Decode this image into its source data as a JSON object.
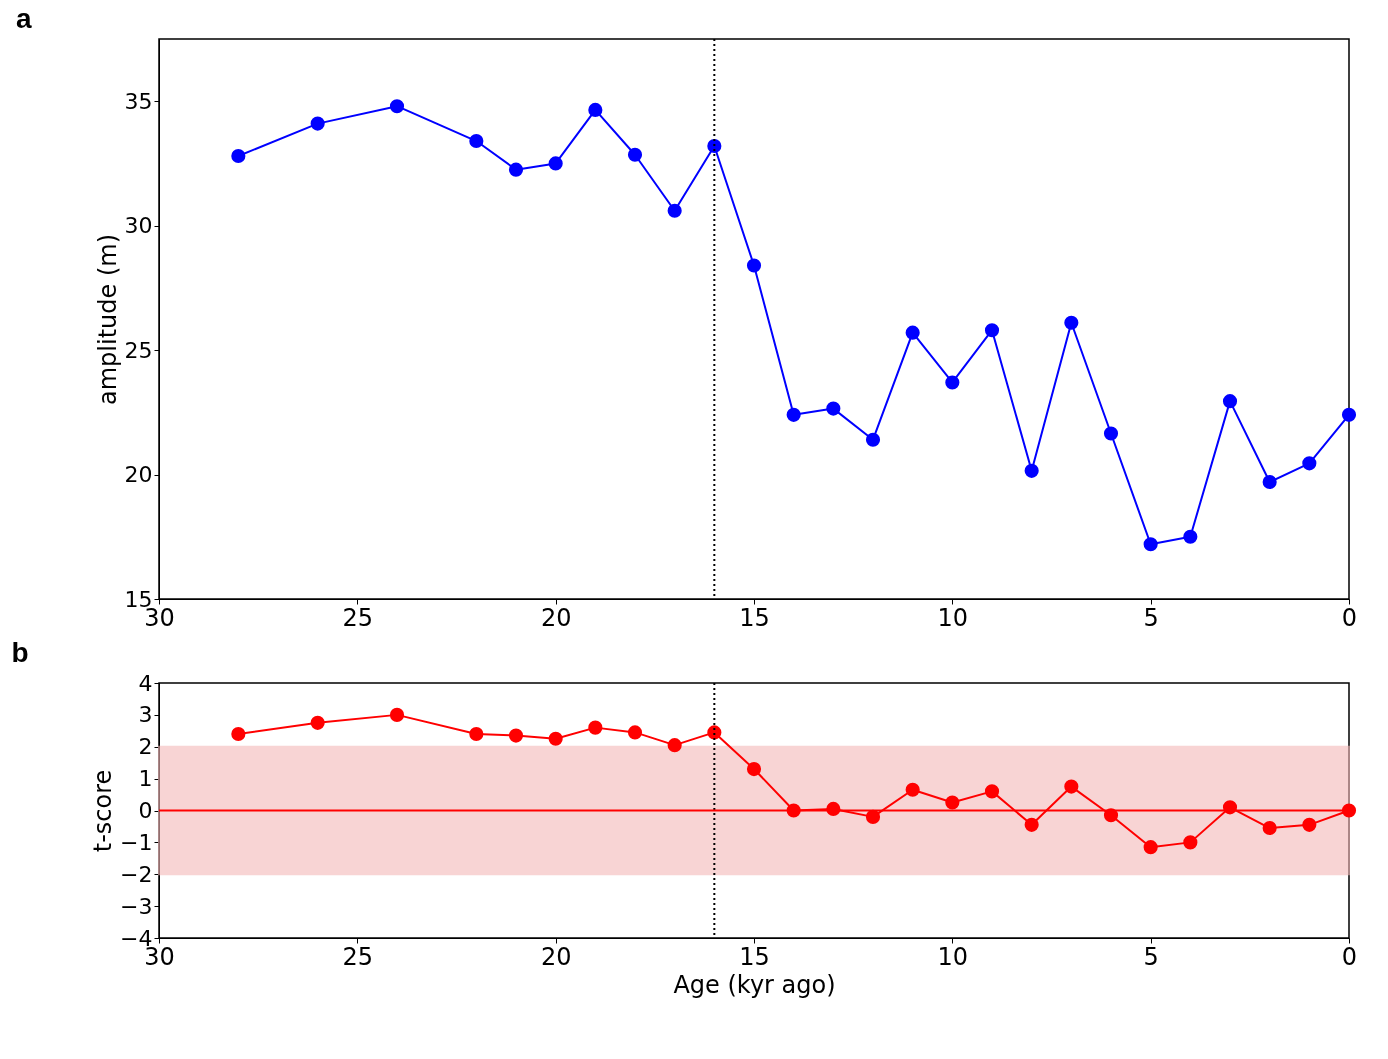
{
  "chart_data": [
    {
      "type": "line",
      "title": "a",
      "ylabel": "amplitude (m)",
      "x": [
        28,
        26,
        24,
        22,
        21,
        20,
        19,
        18,
        17,
        16,
        15,
        14,
        13,
        12,
        11,
        10,
        9,
        8,
        7,
        6,
        5,
        4,
        3,
        2,
        1,
        0
      ],
      "series": [
        {
          "color": "#0000ff",
          "values": [
            32.8,
            34.1,
            34.8,
            33.4,
            32.25,
            32.5,
            34.65,
            32.85,
            30.6,
            33.2,
            28.4,
            22.4,
            22.65,
            21.4,
            25.7,
            23.7,
            25.8,
            20.15,
            26.1,
            21.65,
            17.2,
            17.5,
            22.95,
            19.7,
            20.45,
            22.4
          ]
        }
      ],
      "marker": "circle",
      "line_style": "solid",
      "grid": false,
      "xlim": [
        30,
        0
      ],
      "xticks": [
        30,
        25,
        20,
        15,
        10,
        5,
        0
      ],
      "ylim": [
        15,
        37.5
      ],
      "yticks": [
        15,
        20,
        25,
        30,
        35
      ],
      "ref_lines": [
        {
          "axis": "x",
          "value": 16,
          "color": "#000000",
          "line_style": "dotted"
        }
      ]
    },
    {
      "type": "line",
      "title": "b",
      "xlabel": "Age (kyr ago)",
      "ylabel": "t-score",
      "x": [
        28,
        26,
        24,
        22,
        21,
        20,
        19,
        18,
        17,
        16,
        15,
        14,
        13,
        12,
        11,
        10,
        9,
        8,
        7,
        6,
        5,
        4,
        3,
        2,
        1,
        0
      ],
      "series": [
        {
          "color": "#ff0000",
          "values": [
            2.4,
            2.75,
            3.0,
            2.4,
            2.35,
            2.25,
            2.6,
            2.45,
            2.05,
            2.45,
            1.3,
            0.0,
            0.05,
            -0.2,
            0.65,
            0.25,
            0.6,
            -0.45,
            0.75,
            -0.15,
            -1.15,
            -1.0,
            0.1,
            -0.55,
            -0.45,
            0.0
          ]
        }
      ],
      "marker": "circle",
      "line_style": "solid",
      "grid": false,
      "xlim": [
        30,
        0
      ],
      "xticks": [
        30,
        25,
        20,
        15,
        10,
        5,
        0
      ],
      "ylim": [
        -4,
        4
      ],
      "yticks": [
        {
          "value": -4,
          "label": "−4"
        },
        {
          "value": -3,
          "label": "−3"
        },
        {
          "value": -2,
          "label": "−2"
        },
        {
          "value": -1,
          "label": "−1"
        },
        0,
        1,
        2,
        3,
        4
      ],
      "ref_lines": [
        {
          "axis": "x",
          "value": 16,
          "color": "#000000",
          "line_style": "dotted"
        },
        {
          "axis": "y",
          "value": 0,
          "color": "#ff0000",
          "line_style": "solid"
        }
      ],
      "bands": [
        {
          "axis": "y",
          "from": -2,
          "to": 2,
          "color": "#f4b8b8"
        }
      ]
    }
  ]
}
